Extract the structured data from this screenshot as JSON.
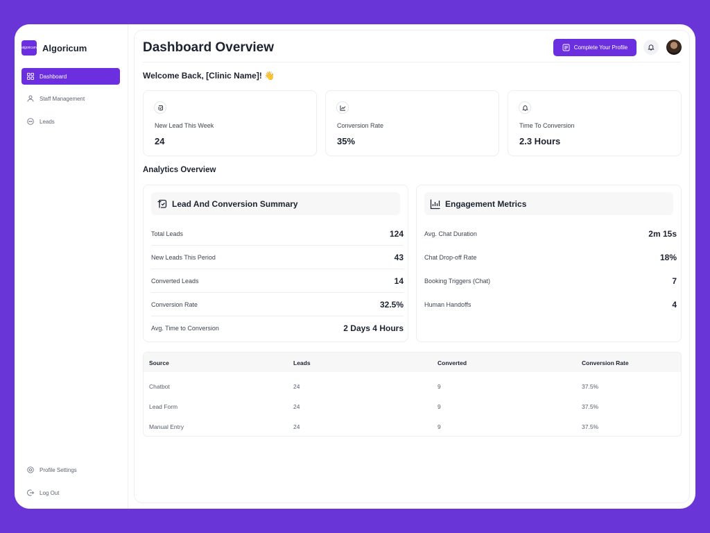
{
  "brand": {
    "name": "Algoricum",
    "logo_text": "algoricum"
  },
  "sidebar": {
    "items": [
      {
        "label": "Dashboard",
        "icon": "grid-icon",
        "active": true
      },
      {
        "label": "Staff Management",
        "icon": "users-icon"
      },
      {
        "label": "Leads",
        "icon": "chat-icon"
      }
    ],
    "bottom": [
      {
        "label": "Profile Settings",
        "icon": "settings-icon"
      },
      {
        "label": "Log Out",
        "icon": "logout-icon"
      }
    ]
  },
  "header": {
    "title": "Dashboard Overview",
    "cta_label": "Complete Your Profile"
  },
  "welcome": "Welcome Back, [Clinic Name]! 👋",
  "stats": [
    {
      "label": "New Lead This Week",
      "value": "24"
    },
    {
      "label": "Conversion Rate",
      "value": "35%"
    },
    {
      "label": "Time To Conversion",
      "value": "2.3 Hours"
    }
  ],
  "analytics_title": "Analytics Overview",
  "lead_summary": {
    "title": "Lead And Conversion Summary",
    "rows": [
      {
        "label": "Total Leads",
        "value": "124"
      },
      {
        "label": "New Leads This Period",
        "value": "43"
      },
      {
        "label": "Converted Leads",
        "value": "14"
      },
      {
        "label": "Conversion Rate",
        "value": "32.5%"
      },
      {
        "label": "Avg. Time to Conversion",
        "value": "2 Days 4 Hours"
      }
    ]
  },
  "engagement": {
    "title": "Engagement Metrics",
    "rows": [
      {
        "label": "Avg. Chat Duration",
        "value": "2m 15s"
      },
      {
        "label": "Chat Drop-off Rate",
        "value": "18%"
      },
      {
        "label": "Booking Triggers (Chat)",
        "value": "7"
      },
      {
        "label": "Human Handoffs",
        "value": "4"
      }
    ]
  },
  "table": {
    "columns": [
      "Source",
      "Leads",
      "Converted",
      "Conversion Rate"
    ],
    "rows": [
      [
        "Chatbot",
        "24",
        "9",
        "37.5%"
      ],
      [
        "Lead Form",
        "24",
        "9",
        "37.5%"
      ],
      [
        "Manual Entry",
        "24",
        "9",
        "37.5%"
      ]
    ]
  },
  "colors": {
    "accent": "#6b2fe0",
    "background": "#6a35d6"
  }
}
